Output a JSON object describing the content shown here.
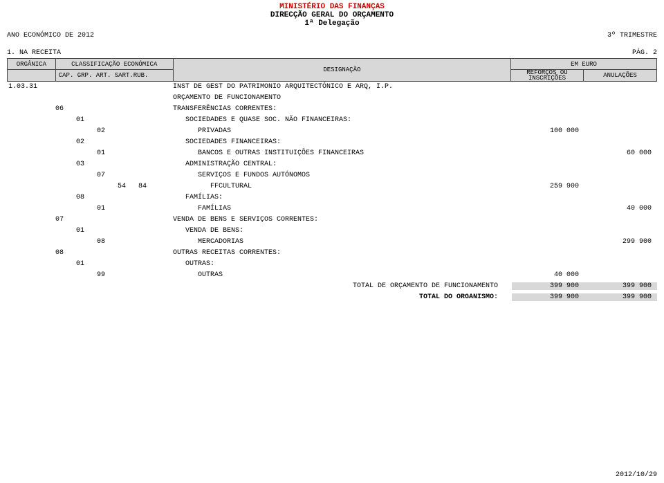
{
  "header": {
    "ministry": "MINISTÉRIO DAS FINANÇAS",
    "direction": "DIRECÇÃO GERAL DO ORÇAMENTO",
    "delegation": "1ª Delegação",
    "econ_year": "ANO ECONÓMICO DE 2012",
    "quarter": "3º TRIMESTRE"
  },
  "section": {
    "left": "1. NA RECEITA",
    "page": "PÁG.  2"
  },
  "thead": {
    "organica": "ORGÂNICA",
    "class_econ": "CLASSIFICAÇÃO ECONÓMICA",
    "cap": "CAP. GRP. ART. SART.RUB.",
    "designacao": "DESIGNAÇÃO",
    "em_euro": "EM EURO",
    "reforcos": "REFORÇOS OU INSCRIÇÕES",
    "anulacoes": "ANULAÇÕES"
  },
  "rows": [
    {
      "org": "1.03.31",
      "c": [
        "",
        "",
        "",
        "",
        ""
      ],
      "d": "INST DE GEST DO PATRIMONIO ARQUITECTÓNICO E ARQ, I.P.",
      "r": "",
      "a": ""
    },
    {
      "org": "",
      "c": [
        "",
        "",
        "",
        "",
        ""
      ],
      "d": "ORÇAMENTO DE FUNCIONAMENTO",
      "r": "",
      "a": ""
    },
    {
      "org": "",
      "c": [
        "06",
        "",
        "",
        "",
        ""
      ],
      "d": "TRANSFERÊNCIAS CORRENTES:",
      "r": "",
      "a": ""
    },
    {
      "org": "",
      "c": [
        "",
        "01",
        "",
        "",
        ""
      ],
      "d": "SOCIEDADES E QUASE SOC. NÃO FINANCEIRAS:",
      "r": "",
      "a": ""
    },
    {
      "org": "",
      "c": [
        "",
        "",
        "02",
        "",
        ""
      ],
      "d": "PRIVADAS",
      "r": "100 000",
      "a": ""
    },
    {
      "org": "",
      "c": [
        "",
        "02",
        "",
        "",
        ""
      ],
      "d": "SOCIEDADES FINANCEIRAS:",
      "r": "",
      "a": ""
    },
    {
      "org": "",
      "c": [
        "",
        "",
        "01",
        "",
        ""
      ],
      "d": "BANCOS E OUTRAS INSTITUIÇÕES FINANCEIRAS",
      "r": "",
      "a": "60 000"
    },
    {
      "org": "",
      "c": [
        "",
        "03",
        "",
        "",
        ""
      ],
      "d": "ADMINISTRAÇÃO CENTRAL:",
      "r": "",
      "a": ""
    },
    {
      "org": "",
      "c": [
        "",
        "",
        "07",
        "",
        ""
      ],
      "d": "SERVIÇOS E FUNDOS AUTÓNOMOS",
      "r": "",
      "a": ""
    },
    {
      "org": "",
      "c": [
        "",
        "",
        "",
        "54",
        "84"
      ],
      "d": "FFCULTURAL",
      "r": "259 900",
      "a": ""
    },
    {
      "org": "",
      "c": [
        "",
        "08",
        "",
        "",
        ""
      ],
      "d": "FAMÍLIAS:",
      "r": "",
      "a": ""
    },
    {
      "org": "",
      "c": [
        "",
        "",
        "01",
        "",
        ""
      ],
      "d": "FAMÍLIAS",
      "r": "",
      "a": "40 000"
    },
    {
      "org": "",
      "c": [
        "07",
        "",
        "",
        "",
        ""
      ],
      "d": "VENDA DE BENS E SERVIÇOS CORRENTES:",
      "r": "",
      "a": ""
    },
    {
      "org": "",
      "c": [
        "",
        "01",
        "",
        "",
        ""
      ],
      "d": "VENDA DE BENS:",
      "r": "",
      "a": ""
    },
    {
      "org": "",
      "c": [
        "",
        "",
        "08",
        "",
        ""
      ],
      "d": "MERCADORIAS",
      "r": "",
      "a": "299 900"
    },
    {
      "org": "",
      "c": [
        "08",
        "",
        "",
        "",
        ""
      ],
      "d": "OUTRAS RECEITAS CORRENTES:",
      "r": "",
      "a": ""
    },
    {
      "org": "",
      "c": [
        "",
        "01",
        "",
        "",
        ""
      ],
      "d": "OUTRAS:",
      "r": "",
      "a": ""
    },
    {
      "org": "",
      "c": [
        "",
        "",
        "99",
        "",
        ""
      ],
      "d": "OUTRAS",
      "r": "40 000",
      "a": ""
    }
  ],
  "totals": {
    "funcionamento_label": "TOTAL DE ORÇAMENTO DE FUNCIONAMENTO",
    "funcionamento_r": "399 900",
    "funcionamento_a": "399 900",
    "organismo_label": "TOTAL DO ORGANISMO:",
    "organismo_r": "399 900",
    "organismo_a": "399 900"
  },
  "footer": {
    "date": "2012/10/29"
  },
  "style": {
    "header_color": "#cc0000",
    "th_bg": "#d8d8d8",
    "font": "Courier New"
  }
}
